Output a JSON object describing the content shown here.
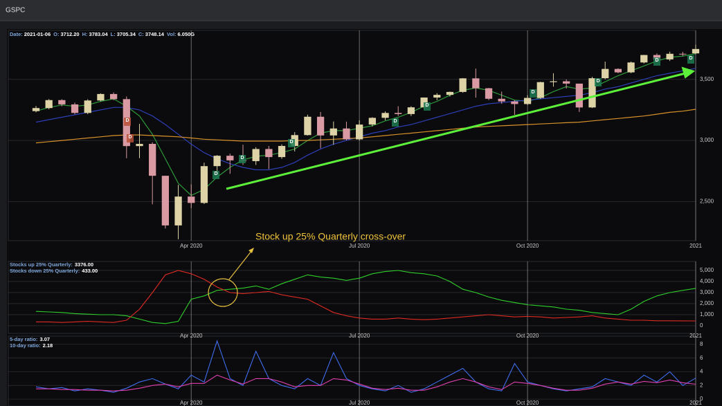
{
  "header": {
    "title": "GSPC"
  },
  "chart_data": [
    {
      "type": "candlestick",
      "info": [
        {
          "label": "Date:",
          "value": "2021-01-06"
        },
        {
          "label": "O:",
          "value": "3712.20"
        },
        {
          "label": "H:",
          "value": "3783.04"
        },
        {
          "label": "L:",
          "value": "3705.34"
        },
        {
          "label": "C:",
          "value": "3748.14"
        },
        {
          "label": "Vol:",
          "value": "6.050G"
        }
      ],
      "x": [
        "2020-01",
        "2020-01",
        "2020-01",
        "2020-01",
        "2020-02",
        "2020-02",
        "2020-02",
        "2020-02",
        "2020-03",
        "2020-03",
        "2020-03",
        "2020-03",
        "2020-04",
        "2020-04",
        "2020-04",
        "2020-04",
        "2020-05",
        "2020-05",
        "2020-05",
        "2020-05",
        "2020-05",
        "2020-06",
        "2020-06",
        "2020-06",
        "2020-06",
        "2020-07",
        "2020-07",
        "2020-07",
        "2020-07",
        "2020-07",
        "2020-08",
        "2020-08",
        "2020-08",
        "2020-08",
        "2020-09",
        "2020-09",
        "2020-09",
        "2020-09",
        "2020-10",
        "2020-10",
        "2020-10",
        "2020-10",
        "2020-10",
        "2020-11",
        "2020-11",
        "2020-11",
        "2020-11",
        "2020-12",
        "2020-12",
        "2020-12",
        "2020-12",
        "2021-01"
      ],
      "ohlc": {
        "open": [
          3240,
          3265,
          3330,
          3295,
          3225,
          3327,
          3380,
          3338,
          2954,
          2972,
          2711,
          2305,
          2541,
          2489,
          2790,
          2875,
          2837,
          2831,
          2930,
          2864,
          2955,
          3044,
          3194,
          3041,
          3098,
          3009,
          3130,
          3185,
          3225,
          3216,
          3271,
          3351,
          3373,
          3397,
          3508,
          3427,
          3341,
          3319,
          3298,
          3348,
          3477,
          3484,
          3465,
          3270,
          3509,
          3585,
          3557,
          3638,
          3699,
          3663,
          3709,
          3712.2
        ],
        "high": [
          3282,
          3338,
          3337,
          3310,
          3337,
          3385,
          3393,
          3360,
          3136,
          2985,
          2711,
          2637,
          2641,
          2818,
          2880,
          2892,
          2965,
          2945,
          2955,
          2968,
          3068,
          3211,
          3233,
          3155,
          3154,
          3165,
          3190,
          3238,
          3280,
          3280,
          3352,
          3387,
          3400,
          3510,
          3588,
          3430,
          3400,
          3330,
          3370,
          3480,
          3550,
          3500,
          3465,
          3520,
          3645,
          3590,
          3645,
          3700,
          3712,
          3726,
          3725,
          3783.04
        ],
        "low": [
          3230,
          3255,
          3280,
          3214,
          3215,
          3320,
          3330,
          2855,
          2855,
          2478,
          2280,
          2192,
          2447,
          2480,
          2725,
          2727,
          2800,
          2800,
          2766,
          2850,
          2910,
          3040,
          2936,
          2965,
          3000,
          3000,
          3115,
          3165,
          3200,
          3200,
          3260,
          3330,
          3360,
          3390,
          3350,
          3330,
          3300,
          3210,
          3290,
          3340,
          3440,
          3425,
          3233,
          3265,
          3500,
          3550,
          3550,
          3630,
          3640,
          3650,
          3690,
          3705.34
        ],
        "close": [
          3265,
          3330,
          3295,
          3225,
          3327,
          3380,
          3338,
          2954,
          2972,
          2711,
          2305,
          2541,
          2489,
          2790,
          2875,
          2837,
          2831,
          2930,
          2864,
          2955,
          3044,
          3194,
          3041,
          3098,
          3009,
          3130,
          3185,
          3225,
          3216,
          3271,
          3351,
          3373,
          3397,
          3508,
          3427,
          3341,
          3319,
          3298,
          3348,
          3477,
          3484,
          3465,
          3270,
          3509,
          3585,
          3557,
          3638,
          3699,
          3663,
          3709,
          3703,
          3748.14
        ]
      },
      "up_color": "#ddd3a6",
      "down_color": "#d99aa4",
      "series": [
        {
          "color": "#2e9a3a",
          "values": [
            3240,
            3270,
            3290,
            3280,
            3290,
            3320,
            3340,
            3280,
            3200,
            3050,
            2850,
            2650,
            2550,
            2600,
            2700,
            2780,
            2840,
            2870,
            2880,
            2900,
            2930,
            3000,
            3060,
            3080,
            3080,
            3100,
            3120,
            3160,
            3190,
            3230,
            3280,
            3320,
            3370,
            3410,
            3430,
            3410,
            3370,
            3330,
            3320,
            3350,
            3400,
            3440,
            3420,
            3430,
            3480,
            3530,
            3570,
            3610,
            3650,
            3680,
            3690,
            3710
          ]
        },
        {
          "color": "#2d3fb8",
          "values": [
            3150,
            3170,
            3190,
            3210,
            3230,
            3250,
            3270,
            3270,
            3250,
            3200,
            3130,
            3050,
            2970,
            2900,
            2850,
            2810,
            2780,
            2760,
            2760,
            2780,
            2820,
            2880,
            2930,
            2970,
            3000,
            3030,
            3060,
            3080,
            3110,
            3130,
            3160,
            3190,
            3220,
            3250,
            3280,
            3300,
            3310,
            3320,
            3330,
            3340,
            3350,
            3360,
            3370,
            3390,
            3420,
            3440,
            3470,
            3500,
            3530,
            3550,
            3570,
            3590
          ]
        },
        {
          "color": "#d9922a",
          "values": [
            2980,
            2990,
            3000,
            3010,
            3020,
            3030,
            3040,
            3045,
            3045,
            3040,
            3035,
            3030,
            3020,
            3010,
            3005,
            3000,
            2995,
            2995,
            2995,
            2995,
            3000,
            3000,
            3005,
            3010,
            3015,
            3020,
            3030,
            3040,
            3050,
            3060,
            3070,
            3080,
            3090,
            3100,
            3110,
            3115,
            3120,
            3125,
            3130,
            3135,
            3140,
            3145,
            3150,
            3160,
            3170,
            3180,
            3190,
            3200,
            3215,
            3230,
            3240,
            3255
          ]
        }
      ],
      "marker_label": "D",
      "ylim": [
        2180,
        3900
      ],
      "yticks": [
        {
          "value": 2500,
          "label": "2,500"
        },
        {
          "value": 3000,
          "label": "3,000"
        },
        {
          "value": 3500,
          "label": "3,500"
        }
      ],
      "xticks": [
        {
          "value": "2020-04",
          "label": "Apr 2020"
        },
        {
          "value": "2020-07",
          "label": "Jul 2020"
        },
        {
          "value": "2020-10",
          "label": "Oct 2020"
        },
        {
          "value": "2021-01",
          "label": "2021"
        }
      ],
      "grid": true
    },
    {
      "type": "line",
      "annotation": "Stock up 25% Quarterly cross-over",
      "x": [
        "2020-01",
        "2020-01",
        "2020-01",
        "2020-01",
        "2020-02",
        "2020-02",
        "2020-02",
        "2020-02",
        "2020-03",
        "2020-03",
        "2020-03",
        "2020-03",
        "2020-04",
        "2020-04",
        "2020-04",
        "2020-04",
        "2020-05",
        "2020-05",
        "2020-05",
        "2020-05",
        "2020-05",
        "2020-06",
        "2020-06",
        "2020-06",
        "2020-06",
        "2020-07",
        "2020-07",
        "2020-07",
        "2020-07",
        "2020-07",
        "2020-08",
        "2020-08",
        "2020-08",
        "2020-08",
        "2020-09",
        "2020-09",
        "2020-09",
        "2020-09",
        "2020-10",
        "2020-10",
        "2020-10",
        "2020-10",
        "2020-10",
        "2020-11",
        "2020-11",
        "2020-11",
        "2020-11",
        "2020-12",
        "2020-12",
        "2020-12",
        "2020-12",
        "2021-01"
      ],
      "series": [
        {
          "name": "Stocks up 25% Quarterly:",
          "readout": "3376.00",
          "color": "#2fd02a",
          "values": [
            1300,
            1250,
            1200,
            1100,
            1050,
            1000,
            1000,
            900,
            600,
            300,
            200,
            400,
            2400,
            2700,
            3200,
            3300,
            3400,
            3600,
            3300,
            3800,
            4200,
            4600,
            4400,
            4300,
            4100,
            4300,
            4700,
            4900,
            5000,
            4800,
            4700,
            4500,
            4000,
            3300,
            3000,
            2600,
            2300,
            2100,
            1900,
            1800,
            1700,
            1500,
            1400,
            1200,
            1100,
            1000,
            1500,
            2200,
            2700,
            3000,
            3200,
            3376
          ]
        },
        {
          "name": "Stocks down 25% Quarterly:",
          "readout": "433.00",
          "color": "#e02a22",
          "values": [
            350,
            350,
            300,
            350,
            400,
            350,
            300,
            500,
            1500,
            3000,
            4600,
            5000,
            4700,
            4200,
            3500,
            3000,
            2900,
            3000,
            3100,
            2800,
            2600,
            2400,
            1800,
            1200,
            900,
            700,
            600,
            600,
            700,
            600,
            550,
            600,
            700,
            800,
            900,
            1000,
            900,
            800,
            850,
            800,
            700,
            750,
            800,
            900,
            700,
            600,
            500,
            500,
            450,
            450,
            440,
            433
          ]
        }
      ],
      "ylim": [
        -690,
        5810
      ],
      "yticks": [
        0,
        {
          "value": 1000,
          "label": "1,000"
        },
        {
          "value": 2000,
          "label": "2,000"
        },
        {
          "value": 3000,
          "label": "3,000"
        },
        {
          "value": 4000,
          "label": "4,000"
        },
        {
          "value": 5000,
          "label": "5,000"
        }
      ],
      "xticks": [
        {
          "value": "2020-04",
          "label": "Apr 2020"
        },
        {
          "value": "2020-07",
          "label": "Jul 2020"
        },
        {
          "value": "2020-10",
          "label": "Oct 2020"
        },
        {
          "value": "2021-01",
          "label": "2021"
        }
      ],
      "grid": true
    },
    {
      "type": "line",
      "x": [
        "2020-01",
        "2020-01",
        "2020-01",
        "2020-01",
        "2020-02",
        "2020-02",
        "2020-02",
        "2020-02",
        "2020-03",
        "2020-03",
        "2020-03",
        "2020-03",
        "2020-04",
        "2020-04",
        "2020-04",
        "2020-04",
        "2020-05",
        "2020-05",
        "2020-05",
        "2020-05",
        "2020-05",
        "2020-06",
        "2020-06",
        "2020-06",
        "2020-06",
        "2020-07",
        "2020-07",
        "2020-07",
        "2020-07",
        "2020-07",
        "2020-08",
        "2020-08",
        "2020-08",
        "2020-08",
        "2020-09",
        "2020-09",
        "2020-09",
        "2020-09",
        "2020-10",
        "2020-10",
        "2020-10",
        "2020-10",
        "2020-10",
        "2020-11",
        "2020-11",
        "2020-11",
        "2020-11",
        "2020-12",
        "2020-12",
        "2020-12",
        "2020-12",
        "2021-01"
      ],
      "series": [
        {
          "name": "5-day ratio:",
          "readout": "3.07",
          "color": "#3f6ff0",
          "values": [
            1.8,
            1.5,
            1.7,
            1.2,
            1.5,
            1.3,
            1.0,
            1.6,
            2.5,
            3.0,
            2.2,
            1.5,
            3.5,
            2.5,
            8.5,
            3.0,
            2.0,
            7.0,
            3.0,
            2.0,
            1.5,
            3.0,
            2.0,
            6.8,
            3.0,
            2.0,
            1.5,
            1.2,
            2.0,
            1.0,
            1.5,
            2.5,
            3.5,
            4.5,
            2.5,
            1.5,
            1.2,
            5.2,
            2.5,
            2.0,
            1.5,
            1.2,
            1.5,
            1.8,
            3.0,
            2.5,
            2.0,
            3.5,
            2.5,
            4.0,
            2.0,
            3.07
          ]
        },
        {
          "name": "10-day ratio:",
          "readout": "2.18",
          "color": "#e040b0",
          "values": [
            1.5,
            1.5,
            1.4,
            1.4,
            1.3,
            1.3,
            1.2,
            1.3,
            1.6,
            2.0,
            2.2,
            1.8,
            2.3,
            2.3,
            3.5,
            2.8,
            2.2,
            3.0,
            3.0,
            2.5,
            1.8,
            2.0,
            2.0,
            3.0,
            2.8,
            2.2,
            1.6,
            1.4,
            1.6,
            1.3,
            1.3,
            1.8,
            2.5,
            3.0,
            2.5,
            1.8,
            1.4,
            2.5,
            2.3,
            2.0,
            1.6,
            1.3,
            1.3,
            1.6,
            2.2,
            2.5,
            2.2,
            2.6,
            2.4,
            2.8,
            2.4,
            2.18
          ]
        }
      ],
      "ylim": [
        -1,
        9.2
      ],
      "yticks": [
        0,
        2,
        4,
        6,
        8
      ],
      "xticks": [
        {
          "value": "2020-04",
          "label": "Apr 2020"
        },
        {
          "value": "2020-07",
          "label": "Jul 2020"
        },
        {
          "value": "2020-10",
          "label": "Oct 2020"
        },
        {
          "value": "2021-01",
          "label": "2021"
        }
      ],
      "grid": true
    }
  ]
}
